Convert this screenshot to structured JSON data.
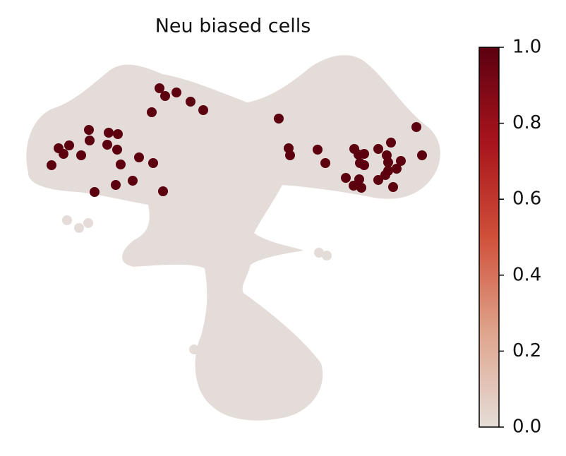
{
  "chart_data": {
    "type": "scatter",
    "title": "Neu biased cells",
    "xlim": [
      0,
      600
    ],
    "ylim": [
      0,
      530
    ],
    "x": [
      196,
      220,
      204,
      240,
      258,
      185,
      96,
      124,
      137,
      97,
      53,
      68,
      122,
      136,
      60,
      85,
      167,
      43,
      141,
      187,
      158,
      134,
      104,
      201,
      365,
      379,
      381,
      420,
      431,
      472,
      478,
      486,
      480,
      486,
      506,
      518,
      520,
      538,
      532,
      520,
      516,
      460,
      479,
      471,
      482,
      506,
      527,
      524,
      560,
      568
    ],
    "y": [
      475,
      469,
      464,
      456,
      444,
      441,
      416,
      412,
      410,
      401,
      390,
      394,
      395,
      388,
      382,
      380,
      377,
      366,
      367,
      369,
      344,
      338,
      328,
      329,
      432,
      390,
      380,
      388,
      369,
      389,
      381,
      382,
      369,
      366,
      389,
      380,
      370,
      372,
      361,
      358,
      352,
      348,
      346,
      337,
      334,
      345,
      335,
      398,
      420,
      380
    ],
    "values": [
      1,
      1,
      1,
      1,
      1,
      1,
      1,
      1,
      1,
      1,
      1,
      1,
      1,
      1,
      1,
      1,
      1,
      1,
      1,
      1,
      1,
      1,
      1,
      1,
      1,
      1,
      1,
      1,
      1,
      1,
      1,
      1,
      1,
      1,
      1,
      1,
      1,
      1,
      1,
      1,
      1,
      1,
      1,
      1,
      1,
      1,
      1,
      1,
      1,
      1
    ],
    "colorbar": {
      "lim": [
        0,
        1
      ],
      "ticks": [
        {
          "value": 0,
          "label": "0.0"
        },
        {
          "value": 0.2,
          "label": "0.2"
        },
        {
          "value": 0.4,
          "label": "0.4"
        },
        {
          "value": 0.6,
          "label": "0.6"
        },
        {
          "value": 0.8,
          "label": "0.8"
        },
        {
          "value": 1,
          "label": "1.0"
        }
      ],
      "colors": [
        "#e5ddd8",
        "#dfa48c",
        "#d0503a",
        "#a8141c",
        "#5c0010"
      ]
    }
  }
}
